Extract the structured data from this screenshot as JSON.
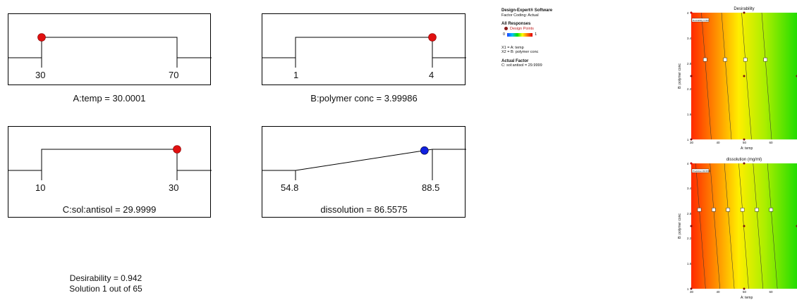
{
  "ramps": [
    {
      "id": "temp",
      "caption": "A:temp  = 30.0001",
      "low": "30",
      "high": "70",
      "lowVal": 30,
      "highVal": 70,
      "value": 30.0001,
      "kind": "factor",
      "dotColor": "#e01010"
    },
    {
      "id": "polymer",
      "caption": "B:polymer conc = 3.99986",
      "low": "1",
      "high": "4",
      "lowVal": 1,
      "highVal": 4,
      "value": 3.99986,
      "kind": "factor",
      "dotColor": "#e01010"
    },
    {
      "id": "solantisol",
      "caption": "C:sol:antisol = 29.9999",
      "low": "10",
      "high": "30",
      "lowVal": 10,
      "highVal": 30,
      "value": 29.9999,
      "kind": "factor",
      "dotColor": "#e01010"
    },
    {
      "id": "dissolution",
      "caption": "dissolution  = 86.5575",
      "low": "54.8",
      "high": "88.5",
      "lowVal": 54.8,
      "highVal": 88.5,
      "value": 86.5575,
      "kind": "response",
      "dotColor": "#1020e0"
    }
  ],
  "summary": {
    "desirability": "Desirability = 0.942",
    "solution": "Solution 1 out of 65"
  },
  "legend": {
    "software": "Design-Expert® Software",
    "coding": "Factor Coding: Actual",
    "responses_title": "All Responses",
    "design_points": "Design Points",
    "scale_min": "0",
    "scale_max": "1",
    "x1": "X1 = A: temp",
    "x2": "X2 = B: polymer conc",
    "actual_title": "Actual Factor",
    "actual": "C: sol:antisol = 29.9999"
  },
  "chart_data": [
    {
      "type": "heatmap",
      "title": "Desirability",
      "xlabel": "A: temp",
      "ylabel": "B: polymer conc",
      "xlim": [
        30,
        70
      ],
      "ylim": [
        1,
        4
      ],
      "xticks": [
        "30",
        "40",
        "50",
        "60"
      ],
      "yticks": [
        "1",
        "1.6",
        "2.2",
        "2.8",
        "3.4",
        "4"
      ],
      "flag_label": "Desirability 0.942",
      "contour_labels": [
        0.8,
        0.6,
        0.4,
        0.2
      ]
    },
    {
      "type": "heatmap",
      "title": "dissolution  (mg/ml)",
      "xlabel": "A: temp",
      "ylabel": "B: polymer conc",
      "xlim": [
        30,
        70
      ],
      "ylim": [
        1,
        4
      ],
      "xticks": [
        "30",
        "40",
        "50",
        "60"
      ],
      "yticks": [
        "1",
        "1.6",
        "2.2",
        "2.8",
        "3.4",
        "4"
      ],
      "flag_label": "Prediction 86.5575",
      "contour_labels": [
        80,
        75,
        70,
        65,
        60,
        55
      ]
    }
  ],
  "colors": {
    "red_dot": "#e01010",
    "blue_dot": "#1020e0"
  }
}
